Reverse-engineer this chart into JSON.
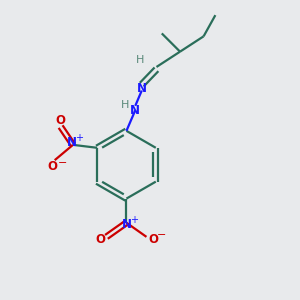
{
  "bg_color": "#e8eaec",
  "bond_color": "#2a6e5a",
  "n_color": "#1a1aff",
  "o_color": "#cc0000",
  "h_color": "#5a8a7a",
  "bond_lw": 1.6,
  "figsize": [
    3.0,
    3.0
  ],
  "dpi": 100,
  "xlim": [
    0,
    10
  ],
  "ylim": [
    0,
    10
  ]
}
